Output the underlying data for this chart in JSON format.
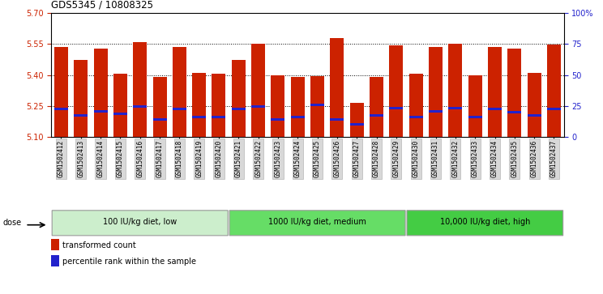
{
  "title": "GDS5345 / 10808325",
  "samples": [
    "GSM1502412",
    "GSM1502413",
    "GSM1502414",
    "GSM1502415",
    "GSM1502416",
    "GSM1502417",
    "GSM1502418",
    "GSM1502419",
    "GSM1502420",
    "GSM1502421",
    "GSM1502422",
    "GSM1502423",
    "GSM1502424",
    "GSM1502425",
    "GSM1502426",
    "GSM1502427",
    "GSM1502428",
    "GSM1502429",
    "GSM1502430",
    "GSM1502431",
    "GSM1502432",
    "GSM1502433",
    "GSM1502434",
    "GSM1502435",
    "GSM1502436",
    "GSM1502437"
  ],
  "bar_values": [
    5.535,
    5.475,
    5.53,
    5.405,
    5.56,
    5.39,
    5.535,
    5.41,
    5.405,
    5.475,
    5.55,
    5.4,
    5.39,
    5.395,
    5.58,
    5.265,
    5.39,
    5.545,
    5.405,
    5.535,
    5.55,
    5.4,
    5.535,
    5.53,
    5.41,
    5.548
  ],
  "blue_values": [
    5.235,
    5.205,
    5.225,
    5.21,
    5.245,
    5.185,
    5.235,
    5.195,
    5.195,
    5.235,
    5.245,
    5.185,
    5.195,
    5.255,
    5.185,
    5.16,
    5.205,
    5.24,
    5.195,
    5.225,
    5.24,
    5.195,
    5.235,
    5.22,
    5.205,
    5.235
  ],
  "ymin": 5.1,
  "ymax": 5.7,
  "yticks": [
    5.1,
    5.25,
    5.4,
    5.55,
    5.7
  ],
  "grid_values": [
    5.25,
    5.4,
    5.55
  ],
  "bar_color": "#cc2200",
  "blue_color": "#2222cc",
  "groups": [
    {
      "label": "100 IU/kg diet, low",
      "start": 0,
      "end": 9,
      "color": "#cceecc"
    },
    {
      "label": "1000 IU/kg diet, medium",
      "start": 9,
      "end": 18,
      "color": "#66dd66"
    },
    {
      "label": "10,000 IU/kg diet, high",
      "start": 18,
      "end": 26,
      "color": "#44cc44"
    }
  ],
  "dose_label": "dose",
  "legend1": "transformed count",
  "legend2": "percentile rank within the sample",
  "bar_width": 0.7,
  "tick_bg": "#d8d8d8"
}
